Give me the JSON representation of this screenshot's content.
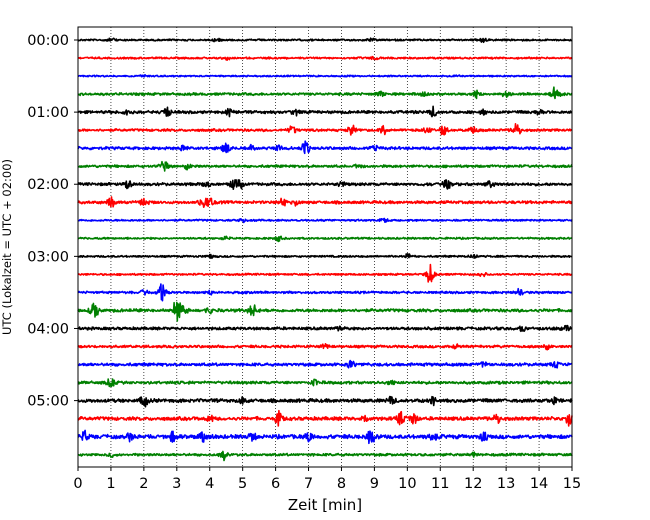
{
  "chart_data": {
    "type": "line",
    "subtype": "helicorder-seismogram",
    "title": "",
    "xlabel": "Zeit  [min]",
    "ylabel": "UTC (Lokalzeit = UTC + 02:00)",
    "xlim": [
      0,
      15
    ],
    "x_ticks": [
      "0",
      "1",
      "2",
      "3",
      "4",
      "5",
      "6",
      "7",
      "8",
      "9",
      "10",
      "11",
      "12",
      "13",
      "14",
      "15"
    ],
    "y_tick_labels": [
      "00:00",
      "01:00",
      "02:00",
      "03:00",
      "04:00",
      "05:00"
    ],
    "grid": "vertical dotted lines at each minute",
    "line_colors": [
      "#000000",
      "#ff0000",
      "#0000ff",
      "#008000"
    ],
    "traces": [
      {
        "start": "00:00",
        "color": "#000000",
        "amp": 0.18,
        "events": [
          [
            1.0,
            0.3
          ],
          [
            4.2,
            0.25
          ],
          [
            8.9,
            0.3
          ],
          [
            12.3,
            0.3
          ]
        ]
      },
      {
        "start": "00:15",
        "color": "#ff0000",
        "amp": 0.18,
        "events": [
          [
            4.5,
            0.35
          ],
          [
            9.0,
            0.25
          ]
        ]
      },
      {
        "start": "00:30",
        "color": "#0000ff",
        "amp": 0.15,
        "events": [
          [
            2.0,
            0.2
          ],
          [
            11.5,
            0.2
          ]
        ]
      },
      {
        "start": "00:45",
        "color": "#008000",
        "amp": 0.25,
        "events": [
          [
            9.2,
            0.5
          ],
          [
            12.1,
            0.7
          ],
          [
            14.5,
            1.4
          ],
          [
            13.0,
            0.4
          ],
          [
            10.5,
            0.3
          ]
        ]
      },
      {
        "start": "01:00",
        "color": "#000000",
        "amp": 0.28,
        "events": [
          [
            2.7,
            0.9
          ],
          [
            4.6,
            0.6
          ],
          [
            6.6,
            0.6
          ],
          [
            10.8,
            0.8
          ],
          [
            12.3,
            0.5
          ],
          [
            14.0,
            0.5
          ],
          [
            1.5,
            0.4
          ]
        ]
      },
      {
        "start": "01:15",
        "color": "#ff0000",
        "amp": 0.25,
        "events": [
          [
            6.5,
            0.8
          ],
          [
            8.3,
            0.8
          ],
          [
            9.3,
            0.9
          ],
          [
            11.1,
            1.0
          ],
          [
            12.0,
            0.5
          ],
          [
            13.3,
            1.4
          ],
          [
            10.6,
            0.6
          ]
        ]
      },
      {
        "start": "01:30",
        "color": "#0000ff",
        "amp": 0.28,
        "events": [
          [
            4.5,
            0.9
          ],
          [
            5.3,
            0.6
          ],
          [
            6.1,
            0.5
          ],
          [
            6.9,
            1.1
          ],
          [
            3.2,
            0.4
          ],
          [
            9.0,
            0.4
          ]
        ]
      },
      {
        "start": "01:45",
        "color": "#008000",
        "amp": 0.25,
        "events": [
          [
            2.6,
            1.0
          ],
          [
            3.3,
            0.5
          ],
          [
            8.5,
            0.3
          ]
        ]
      },
      {
        "start": "02:00",
        "color": "#000000",
        "amp": 0.28,
        "events": [
          [
            1.5,
            0.7
          ],
          [
            4.9,
            0.8
          ],
          [
            4.7,
            0.6
          ],
          [
            11.2,
            0.9
          ],
          [
            12.5,
            0.5
          ],
          [
            3.9,
            0.5
          ],
          [
            8.0,
            0.4
          ]
        ]
      },
      {
        "start": "02:15",
        "color": "#ff0000",
        "amp": 0.28,
        "events": [
          [
            1.0,
            0.8
          ],
          [
            2.0,
            0.5
          ],
          [
            3.8,
            0.9
          ],
          [
            4.0,
            0.6
          ],
          [
            6.2,
            0.6
          ],
          [
            6.6,
            0.4
          ]
        ]
      },
      {
        "start": "02:30",
        "color": "#0000ff",
        "amp": 0.18,
        "events": [
          [
            5.0,
            0.3
          ],
          [
            9.3,
            0.3
          ]
        ]
      },
      {
        "start": "02:45",
        "color": "#008000",
        "amp": 0.18,
        "events": [
          [
            6.1,
            0.5
          ],
          [
            4.5,
            0.3
          ]
        ]
      },
      {
        "start": "03:00",
        "color": "#000000",
        "amp": 0.18,
        "events": [
          [
            4.0,
            0.3
          ],
          [
            10.0,
            0.4
          ],
          [
            12.0,
            0.3
          ]
        ]
      },
      {
        "start": "03:15",
        "color": "#ff0000",
        "amp": 0.18,
        "events": [
          [
            10.7,
            1.6
          ],
          [
            12.3,
            0.3
          ]
        ]
      },
      {
        "start": "03:30",
        "color": "#0000ff",
        "amp": 0.22,
        "events": [
          [
            2.55,
            1.9
          ],
          [
            2.0,
            0.4
          ],
          [
            4.0,
            0.4
          ],
          [
            13.4,
            0.6
          ]
        ]
      },
      {
        "start": "03:45",
        "color": "#008000",
        "amp": 0.3,
        "events": [
          [
            0.5,
            1.7
          ],
          [
            3.0,
            1.9
          ],
          [
            3.2,
            0.9
          ],
          [
            5.3,
            1.0
          ],
          [
            4.0,
            0.4
          ]
        ]
      },
      {
        "start": "04:00",
        "color": "#000000",
        "amp": 0.28,
        "events": [
          [
            8.0,
            0.4
          ],
          [
            13.5,
            0.4
          ],
          [
            14.8,
            0.5
          ]
        ]
      },
      {
        "start": "04:15",
        "color": "#ff0000",
        "amp": 0.25,
        "events": [
          [
            7.5,
            0.4
          ],
          [
            11.5,
            0.4
          ],
          [
            14.2,
            0.6
          ]
        ]
      },
      {
        "start": "04:30",
        "color": "#0000ff",
        "amp": 0.3,
        "events": [
          [
            8.3,
            0.6
          ],
          [
            12.3,
            0.4
          ],
          [
            14.5,
            0.4
          ]
        ]
      },
      {
        "start": "04:45",
        "color": "#008000",
        "amp": 0.28,
        "events": [
          [
            1.0,
            0.8
          ],
          [
            7.2,
            0.5
          ],
          [
            9.5,
            0.4
          ]
        ]
      },
      {
        "start": "05:00",
        "color": "#000000",
        "amp": 0.35,
        "events": [
          [
            2.0,
            0.9
          ],
          [
            9.5,
            0.6
          ],
          [
            10.8,
            0.7
          ],
          [
            14.5,
            0.7
          ],
          [
            5.0,
            0.5
          ]
        ]
      },
      {
        "start": "05:15",
        "color": "#ff0000",
        "amp": 0.35,
        "events": [
          [
            6.1,
            1.0
          ],
          [
            9.8,
            1.2
          ],
          [
            10.2,
            0.9
          ],
          [
            4.0,
            0.6
          ],
          [
            12.7,
            0.8
          ],
          [
            14.9,
            1.0
          ],
          [
            8.7,
            0.6
          ]
        ]
      },
      {
        "start": "05:30",
        "color": "#0000ff",
        "amp": 0.4,
        "events": [
          [
            0.2,
            0.9
          ],
          [
            2.9,
            0.9
          ],
          [
            3.8,
            0.8
          ],
          [
            8.9,
            1.2
          ],
          [
            7.0,
            0.7
          ],
          [
            10.8,
            0.7
          ],
          [
            12.3,
            0.7
          ],
          [
            1.6,
            0.6
          ],
          [
            5.3,
            0.6
          ]
        ]
      },
      {
        "start": "05:45",
        "color": "#008000",
        "amp": 0.25,
        "events": [
          [
            4.4,
            0.8
          ],
          [
            1.0,
            0.4
          ],
          [
            12.0,
            0.3
          ]
        ]
      }
    ]
  }
}
